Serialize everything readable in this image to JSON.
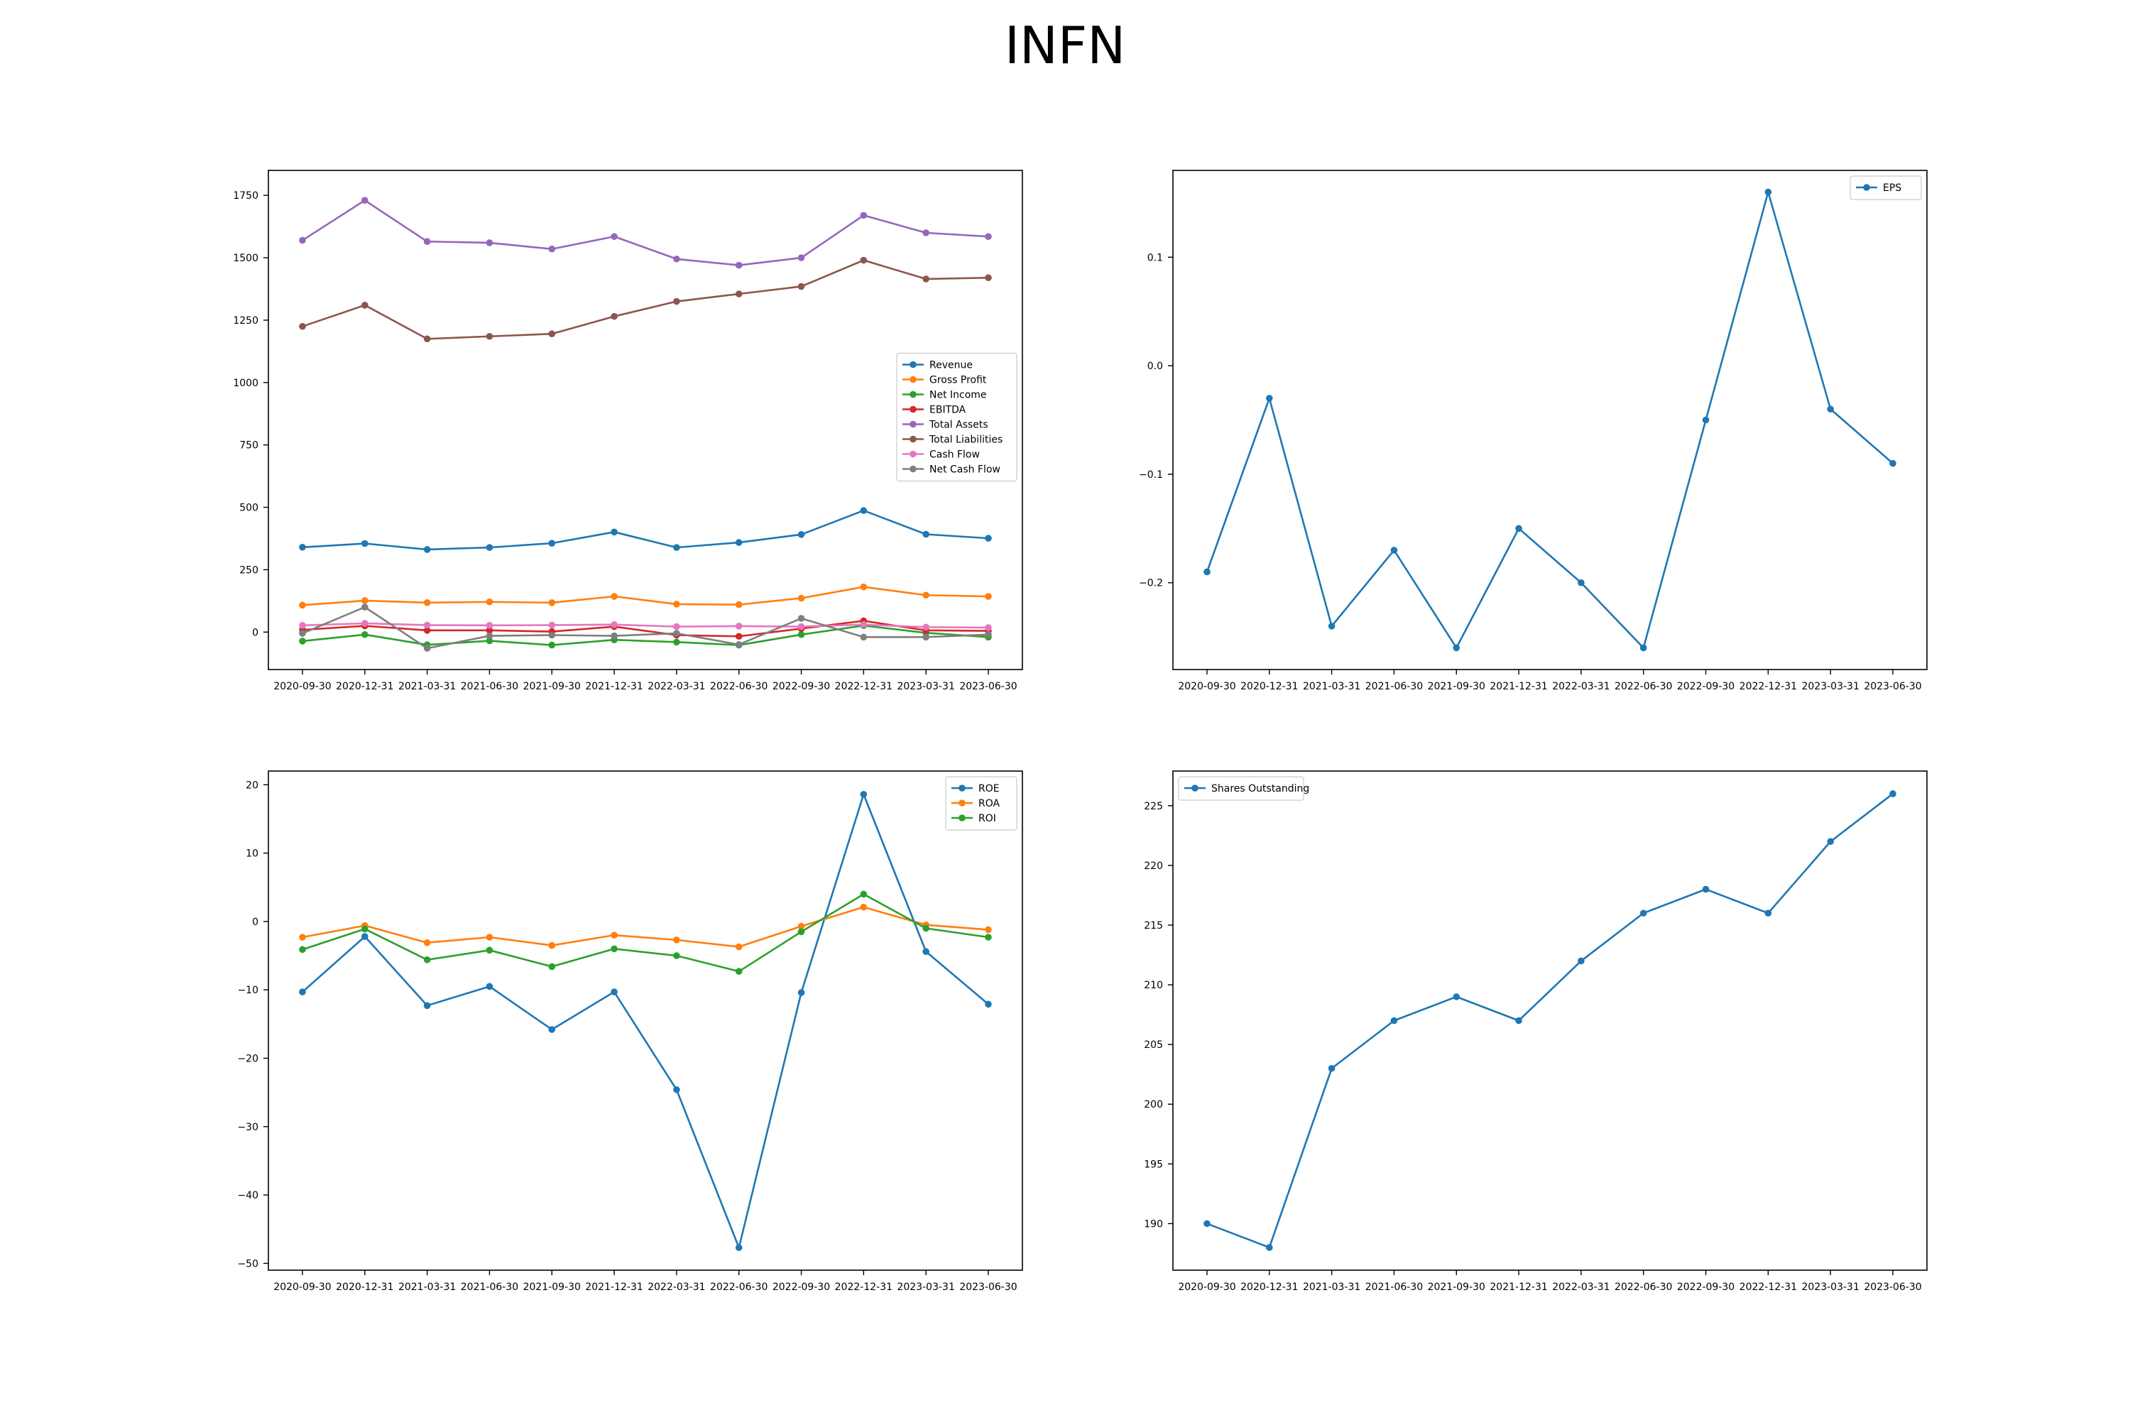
{
  "title": "INFN",
  "colors": {
    "blue": "#1f77b4",
    "orange": "#ff7f0e",
    "green": "#2ca02c",
    "red": "#d62728",
    "purple": "#9467bd",
    "brown": "#8c564b",
    "pink": "#e377c2",
    "gray": "#7f7f7f"
  },
  "chart_data": [
    {
      "type": "line",
      "categories": [
        "2020-09-30",
        "2020-12-31",
        "2021-03-31",
        "2021-06-30",
        "2021-09-30",
        "2021-12-31",
        "2022-03-31",
        "2022-06-30",
        "2022-09-30",
        "2022-12-31",
        "2023-03-31",
        "2023-06-30"
      ],
      "ylim": [
        -150,
        1850
      ],
      "yticks": [
        0,
        250,
        500,
        750,
        1000,
        1250,
        1500,
        1750
      ],
      "legend": "center-right",
      "grid": false,
      "series": [
        {
          "name": "Revenue",
          "color": "#1f77b4",
          "values": [
            340,
            355,
            331,
            339,
            356,
            401,
            339,
            359,
            391,
            487,
            392,
            376
          ]
        },
        {
          "name": "Gross Profit",
          "color": "#ff7f0e",
          "values": [
            108,
            126,
            118,
            121,
            118,
            143,
            112,
            110,
            136,
            181,
            148,
            143
          ]
        },
        {
          "name": "Net Income",
          "color": "#2ca02c",
          "values": [
            -36,
            -10,
            -51,
            -35,
            -52,
            -31,
            -40,
            -52,
            -10,
            26,
            -3,
            -20
          ]
        },
        {
          "name": "EBITDA",
          "color": "#d62728",
          "values": [
            9,
            25,
            7,
            7,
            2,
            22,
            -12,
            -17,
            14,
            45,
            7,
            5
          ]
        },
        {
          "name": "Total Assets",
          "color": "#9467bd",
          "values": [
            1570,
            1730,
            1565,
            1560,
            1535,
            1585,
            1495,
            1470,
            1500,
            1670,
            1600,
            1585
          ]
        },
        {
          "name": "Total Liabilities",
          "color": "#8c564b",
          "values": [
            1225,
            1310,
            1175,
            1185,
            1195,
            1265,
            1325,
            1355,
            1385,
            1490,
            1415,
            1420
          ]
        },
        {
          "name": "Cash Flow",
          "color": "#e377c2",
          "values": [
            27,
            35,
            28,
            27,
            28,
            30,
            22,
            24,
            22,
            30,
            20,
            18
          ]
        },
        {
          "name": "Net Cash Flow",
          "color": "#7f7f7f",
          "values": [
            -5,
            100,
            -65,
            -15,
            -12,
            -15,
            -5,
            -50,
            55,
            -20,
            -20,
            -10
          ]
        }
      ]
    },
    {
      "type": "line",
      "categories": [
        "2020-09-30",
        "2020-12-31",
        "2021-03-31",
        "2021-06-30",
        "2021-09-30",
        "2021-12-31",
        "2022-03-31",
        "2022-06-30",
        "2022-09-30",
        "2022-12-31",
        "2023-03-31",
        "2023-06-30"
      ],
      "ylim": [
        -0.28,
        0.18
      ],
      "yticks": [
        -0.2,
        -0.1,
        0.0,
        0.1
      ],
      "ytick_labels": [
        "−0.2",
        "−0.1",
        "0.0",
        "0.1"
      ],
      "legend": "top-right",
      "grid": false,
      "series": [
        {
          "name": "EPS",
          "color": "#1f77b4",
          "values": [
            -0.19,
            -0.03,
            -0.24,
            -0.17,
            -0.26,
            -0.15,
            -0.2,
            -0.26,
            -0.05,
            0.16,
            -0.04,
            -0.09
          ]
        }
      ]
    },
    {
      "type": "line",
      "categories": [
        "2020-09-30",
        "2020-12-31",
        "2021-03-31",
        "2021-06-30",
        "2021-09-30",
        "2021-12-31",
        "2022-03-31",
        "2022-06-30",
        "2022-09-30",
        "2022-12-31",
        "2023-03-31",
        "2023-06-30"
      ],
      "ylim": [
        -51,
        22
      ],
      "yticks": [
        -50,
        -40,
        -30,
        -20,
        -10,
        0,
        10,
        20
      ],
      "ytick_labels": [
        "−50",
        "−40",
        "−30",
        "−20",
        "−10",
        "0",
        "10",
        "20"
      ],
      "legend": "top-right",
      "grid": false,
      "series": [
        {
          "name": "ROE",
          "color": "#1f77b4",
          "values": [
            -10.3,
            -2.2,
            -12.3,
            -9.5,
            -15.8,
            -10.3,
            -24.6,
            -47.7,
            -10.4,
            18.6,
            -4.4,
            -12.1
          ]
        },
        {
          "name": "ROA",
          "color": "#ff7f0e",
          "values": [
            -2.3,
            -0.6,
            -3.1,
            -2.3,
            -3.5,
            -2.0,
            -2.7,
            -3.7,
            -0.7,
            2.1,
            -0.5,
            -1.2
          ]
        },
        {
          "name": "ROI",
          "color": "#2ca02c",
          "values": [
            -4.1,
            -1.1,
            -5.6,
            -4.2,
            -6.6,
            -4.0,
            -5.0,
            -7.3,
            -1.5,
            4.0,
            -1.0,
            -2.3
          ]
        }
      ]
    },
    {
      "type": "line",
      "categories": [
        "2020-09-30",
        "2020-12-31",
        "2021-03-31",
        "2021-06-30",
        "2021-09-30",
        "2021-12-31",
        "2022-03-31",
        "2022-06-30",
        "2022-09-30",
        "2022-12-31",
        "2023-03-31",
        "2023-06-30"
      ],
      "ylim": [
        186.1,
        227.9
      ],
      "yticks": [
        190,
        195,
        200,
        205,
        210,
        215,
        220,
        225
      ],
      "legend": "top-left",
      "grid": false,
      "series": [
        {
          "name": "Shares Outstanding",
          "color": "#1f77b4",
          "values": [
            190,
            188,
            203,
            207,
            209,
            207,
            212,
            216,
            218,
            216,
            222,
            226
          ]
        }
      ]
    }
  ]
}
